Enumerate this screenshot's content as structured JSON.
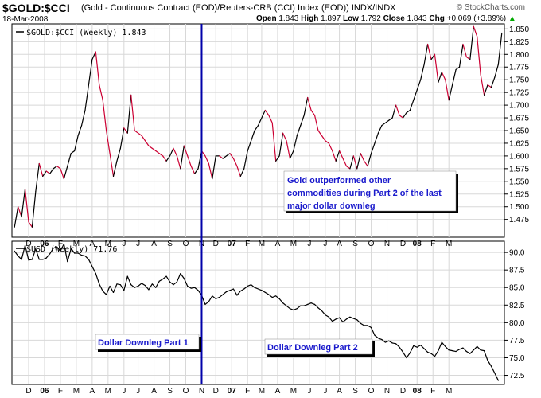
{
  "header": {
    "symbol": "$GOLD:$CCI",
    "description": "(Gold - Continuous Contract (EOD)/Reuters-CRB (CCI) Index (EOD))  INDX/INDX",
    "date": "18-Mar-2008",
    "credit": "© StockCharts.com",
    "open_label": "Open",
    "open": "1.843",
    "high_label": "High",
    "high": "1.897",
    "low_label": "Low",
    "low": "1.792",
    "close_label": "Close",
    "close": "1.843",
    "chg_label": "Chg",
    "chg": "+0.069 (+3.89%)",
    "chg_arrow": "▲"
  },
  "chart_data": [
    {
      "type": "line",
      "legend": "$GOLD:$CCI (Weekly) 1.843",
      "ylim": [
        1.44,
        1.86
      ],
      "yticks": [
        1.475,
        1.5,
        1.525,
        1.55,
        1.575,
        1.6,
        1.625,
        1.65,
        1.675,
        1.7,
        1.725,
        1.75,
        1.775,
        1.8,
        1.825,
        1.85
      ],
      "ytick_labels": [
        "1.475",
        "1.500",
        "1.525",
        "1.550",
        "1.575",
        "1.600",
        "1.625",
        "1.650",
        "1.675",
        "1.700",
        "1.725",
        "1.750",
        "1.775",
        "1.800",
        "1.825",
        "1.850"
      ],
      "up_color": "#000000",
      "down_color": "#cc0033",
      "values": [
        1.46,
        1.5,
        1.48,
        1.535,
        1.47,
        1.46,
        1.53,
        1.585,
        1.56,
        1.57,
        1.565,
        1.575,
        1.58,
        1.575,
        1.555,
        1.58,
        1.605,
        1.61,
        1.64,
        1.66,
        1.69,
        1.74,
        1.79,
        1.805,
        1.74,
        1.71,
        1.65,
        1.605,
        1.56,
        1.59,
        1.615,
        1.655,
        1.645,
        1.72,
        1.65,
        1.645,
        1.64,
        1.63,
        1.62,
        1.615,
        1.61,
        1.605,
        1.6,
        1.59,
        1.6,
        1.615,
        1.6,
        1.575,
        1.62,
        1.6,
        1.58,
        1.565,
        1.575,
        1.61,
        1.6,
        1.585,
        1.555,
        1.6,
        1.6,
        1.595,
        1.6,
        1.605,
        1.595,
        1.58,
        1.56,
        1.575,
        1.61,
        1.63,
        1.65,
        1.66,
        1.675,
        1.69,
        1.68,
        1.665,
        1.59,
        1.6,
        1.645,
        1.63,
        1.595,
        1.61,
        1.64,
        1.66,
        1.68,
        1.715,
        1.69,
        1.68,
        1.65,
        1.64,
        1.63,
        1.625,
        1.61,
        1.59,
        1.61,
        1.595,
        1.58,
        1.575,
        1.6,
        1.575,
        1.605,
        1.59,
        1.58,
        1.605,
        1.625,
        1.645,
        1.66,
        1.665,
        1.67,
        1.675,
        1.7,
        1.68,
        1.675,
        1.685,
        1.69,
        1.71,
        1.73,
        1.75,
        1.78,
        1.82,
        1.79,
        1.8,
        1.745,
        1.765,
        1.75,
        1.71,
        1.74,
        1.77,
        1.775,
        1.82,
        1.795,
        1.79,
        1.855,
        1.835,
        1.76,
        1.72,
        1.74,
        1.735,
        1.755,
        1.78,
        1.842
      ]
    },
    {
      "type": "line",
      "legend": "$USD (Weekly) 71.76",
      "ylim": [
        71.2,
        91.6
      ],
      "yticks": [
        72.5,
        75.0,
        77.5,
        80.0,
        82.5,
        85.0,
        87.5,
        90.0
      ],
      "ytick_labels": [
        "72.5",
        "75.0",
        "77.5",
        "80.0",
        "82.5",
        "85.0",
        "87.5",
        "90.0"
      ],
      "color": "#000000",
      "values": [
        90.2,
        89.5,
        89.0,
        91.0,
        88.9,
        89.0,
        90.5,
        89.0,
        89.0,
        89.2,
        89.8,
        90.6,
        90.8,
        90.2,
        91.2,
        88.7,
        90.5,
        89.9,
        89.9,
        89.6,
        89.5,
        89.0,
        88.0,
        87.0,
        85.5,
        84.5,
        84.0,
        85.2,
        84.3,
        85.5,
        85.4,
        84.6,
        86.6,
        85.4,
        85.0,
        85.2,
        85.6,
        85.3,
        84.7,
        85.5,
        85.0,
        85.9,
        86.2,
        86.6,
        85.8,
        85.4,
        85.8,
        87.0,
        86.3,
        85.2,
        84.9,
        85.0,
        84.6,
        83.9,
        82.6,
        83.0,
        83.8,
        83.4,
        83.6,
        84.0,
        84.4,
        84.6,
        84.8,
        83.9,
        84.5,
        84.8,
        85.2,
        85.4,
        85.0,
        84.8,
        84.6,
        84.3,
        84.0,
        83.6,
        83.8,
        83.4,
        82.8,
        82.4,
        82.0,
        81.8,
        82.0,
        82.4,
        82.4,
        82.6,
        82.8,
        82.6,
        82.1,
        81.7,
        81.1,
        80.8,
        80.2,
        80.5,
        80.7,
        80.1,
        80.5,
        80.8,
        80.6,
        80.4,
        79.9,
        79.6,
        79.6,
        79.3,
        78.2,
        77.8,
        77.6,
        77.2,
        77.4,
        77.1,
        77.0,
        76.5,
        75.8,
        75.0,
        75.7,
        76.7,
        76.5,
        76.8,
        76.3,
        75.8,
        75.6,
        75.2,
        76.0,
        77.2,
        76.6,
        76.1,
        76.0,
        75.9,
        76.2,
        76.4,
        75.9,
        75.6,
        76.1,
        76.6,
        76.1,
        76.0,
        74.6,
        73.8,
        72.8,
        71.76
      ]
    }
  ],
  "x_axis": {
    "labels": [
      {
        "text": "D",
        "year": false,
        "week": 4
      },
      {
        "text": "06",
        "year": true,
        "week": 8.5
      },
      {
        "text": "F",
        "year": false,
        "week": 13
      },
      {
        "text": "M",
        "year": false,
        "week": 17.5
      },
      {
        "text": "A",
        "year": false,
        "week": 22
      },
      {
        "text": "M",
        "year": false,
        "week": 26.5
      },
      {
        "text": "J",
        "year": false,
        "week": 31
      },
      {
        "text": "J",
        "year": false,
        "week": 35
      },
      {
        "text": "A",
        "year": false,
        "week": 39.5
      },
      {
        "text": "S",
        "year": false,
        "week": 44
      },
      {
        "text": "O",
        "year": false,
        "week": 48.5
      },
      {
        "text": "N",
        "year": false,
        "week": 53
      },
      {
        "text": "D",
        "year": false,
        "week": 57
      },
      {
        "text": "07",
        "year": true,
        "week": 61.5
      },
      {
        "text": "F",
        "year": false,
        "week": 66
      },
      {
        "text": "M",
        "year": false,
        "week": 70
      },
      {
        "text": "A",
        "year": false,
        "week": 74.5
      },
      {
        "text": "M",
        "year": false,
        "week": 79
      },
      {
        "text": "J",
        "year": false,
        "week": 83.5
      },
      {
        "text": "J",
        "year": false,
        "week": 88
      },
      {
        "text": "A",
        "year": false,
        "week": 92
      },
      {
        "text": "S",
        "year": false,
        "week": 96.5
      },
      {
        "text": "O",
        "year": false,
        "week": 101
      },
      {
        "text": "N",
        "year": false,
        "week": 105.5
      },
      {
        "text": "D",
        "year": false,
        "week": 110
      },
      {
        "text": "08",
        "year": true,
        "week": 114
      },
      {
        "text": "F",
        "year": false,
        "week": 118.5
      },
      {
        "text": "M",
        "year": false,
        "week": 123
      }
    ]
  },
  "annotations": {
    "gold_note": [
      "Gold outperformed other",
      "commodities during Part 2 of the last",
      "major dollar downleg"
    ],
    "part1": "Dollar Downleg Part 1",
    "part2": "Dollar Downleg Part 2",
    "divider_week": 53,
    "divider_color": "#0000aa"
  }
}
